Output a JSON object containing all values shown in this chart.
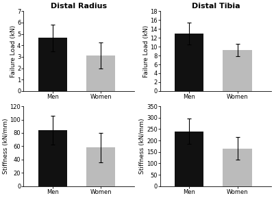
{
  "panels": [
    {
      "title": "Distal Radius",
      "ylabel": "Failure Load (kN)",
      "categories": [
        "Men",
        "Women"
      ],
      "values": [
        4.65,
        3.1
      ],
      "errors": [
        1.15,
        1.15
      ],
      "ylim": [
        0,
        7
      ],
      "yticks": [
        0,
        1,
        2,
        3,
        4,
        5,
        6,
        7
      ],
      "bar_colors": [
        "#111111",
        "#bbbbbb"
      ],
      "row": 0,
      "col": 0
    },
    {
      "title": "Distal Tibia",
      "ylabel": "Failure Load (kN)",
      "categories": [
        "Men",
        "Women"
      ],
      "values": [
        13.0,
        9.2
      ],
      "errors": [
        2.5,
        1.4
      ],
      "ylim": [
        0,
        18
      ],
      "yticks": [
        0,
        2,
        4,
        6,
        8,
        10,
        12,
        14,
        16,
        18
      ],
      "bar_colors": [
        "#111111",
        "#bbbbbb"
      ],
      "row": 0,
      "col": 1
    },
    {
      "title": "",
      "ylabel": "Stiffness (kN/mm)",
      "categories": [
        "Men",
        "Women"
      ],
      "values": [
        84,
        58
      ],
      "errors": [
        22,
        22
      ],
      "ylim": [
        0,
        120
      ],
      "yticks": [
        0,
        20,
        40,
        60,
        80,
        100,
        120
      ],
      "bar_colors": [
        "#111111",
        "#bbbbbb"
      ],
      "row": 1,
      "col": 0
    },
    {
      "title": "",
      "ylabel": "Stiffness (kN/mm)",
      "categories": [
        "Men",
        "Women"
      ],
      "values": [
        240,
        165
      ],
      "errors": [
        55,
        50
      ],
      "ylim": [
        0,
        350
      ],
      "yticks": [
        0,
        50,
        100,
        150,
        200,
        250,
        300,
        350
      ],
      "bar_colors": [
        "#111111",
        "#bbbbbb"
      ],
      "row": 1,
      "col": 1
    }
  ],
  "bar_width": 0.6,
  "background_color": "#ffffff",
  "title_fontsize": 8,
  "label_fontsize": 6.5,
  "tick_fontsize": 6
}
